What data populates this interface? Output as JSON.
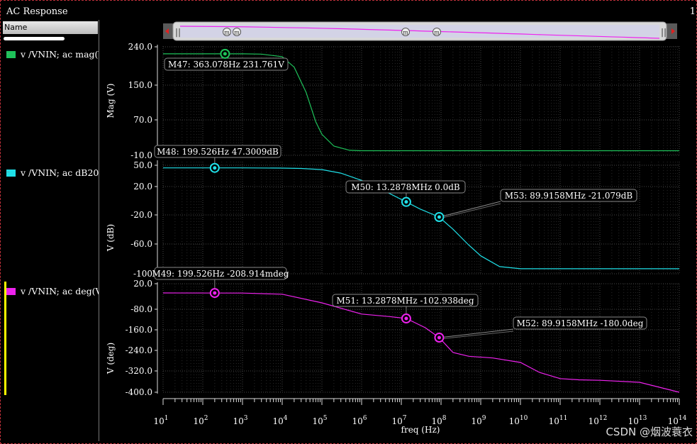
{
  "window": {
    "title": "AC Response",
    "title_right": "1"
  },
  "sidebar": {
    "header": "Name",
    "signals": [
      {
        "label": "v /VNIN; ac mag(V)",
        "color": "#1ec25a"
      },
      {
        "label": "v /VNIN; ac dB20",
        "color": "#1fe0e8"
      },
      {
        "label": "v /VNIN; ac deg(V)",
        "color": "#ee22ee"
      }
    ]
  },
  "overview_markers": [
    "m",
    "m",
    "m",
    "m"
  ],
  "watermark": "CSDN @烟波蓑衣",
  "chart_data": [
    {
      "type": "line",
      "ylabel": "Mag (V)",
      "ytick_labels": [
        "240.0",
        "150.0",
        "70.0",
        "-10.0"
      ],
      "ylim": [
        -10,
        240
      ],
      "x_log": true,
      "xlim": [
        10,
        100000000000000
      ],
      "color": "#1ec25a",
      "x": [
        10,
        1000,
        3000,
        10000,
        20000,
        40000,
        70000,
        100000,
        200000,
        500000,
        1000000,
        100000000000000
      ],
      "y": [
        231.8,
        231.8,
        231.0,
        225.0,
        200.0,
        140.0,
        70.0,
        40.0,
        12.0,
        2.0,
        1.0,
        1.0
      ],
      "markers": [
        {
          "label": "M47: 363.078Hz 231.761V",
          "x": 363.078,
          "y": 231.761
        }
      ]
    },
    {
      "type": "line",
      "ylabel": "V (dB)",
      "ytick_labels": [
        "50.0",
        "20.0",
        "-20.0",
        "-60.0",
        "-100"
      ],
      "ylim": [
        -100,
        50
      ],
      "x_log": true,
      "xlim": [
        10,
        100000000000000
      ],
      "color": "#1fe0e8",
      "x": [
        10,
        1000,
        10000,
        30000,
        100000,
        300000,
        1000000,
        3000000,
        13287800,
        30000000,
        89915800,
        200000000,
        500000000,
        1000000000,
        3000000000,
        10000000000,
        100000000000000
      ],
      "y": [
        47.3,
        47.3,
        47.0,
        46.5,
        45.0,
        40.0,
        30.0,
        18.0,
        0.0,
        -10.0,
        -21.1,
        -38.0,
        -60.0,
        -75.0,
        -90.0,
        -93.0,
        -93.0
      ],
      "markers": [
        {
          "label": "M48: 199.526Hz 47.3009dB",
          "x": 199.526,
          "y": 47.3009
        },
        {
          "label": "M50: 13.2878MHz 0.0dB",
          "x": 13287800,
          "y": 0.0
        },
        {
          "label": "M53: 89.9158MHz -21.079dB",
          "x": 89915800,
          "y": -21.079
        }
      ]
    },
    {
      "type": "line",
      "ylabel": "V (deg)",
      "ytick_labels": [
        "20.0",
        "-80.0",
        "-160.0",
        "-240.0",
        "-320.0",
        "-400.0"
      ],
      "ylim": [
        -400,
        20
      ],
      "x_log": true,
      "xlim": [
        10,
        100000000000000
      ],
      "color": "#ee22ee",
      "x": [
        10,
        1000,
        10000,
        100000,
        1000000,
        5000000,
        13287800,
        40000000,
        89915800,
        200000000,
        500000000,
        2000000000,
        10000000000,
        30000000000,
        100000000000,
        300000000000,
        1000000000000,
        10000000000000,
        100000000000000
      ],
      "y": [
        0.0,
        -0.5,
        -5.0,
        -40.0,
        -85.0,
        -95.0,
        -102.9,
        -140.0,
        -180.0,
        -240.0,
        -255.0,
        -262.0,
        -280.0,
        -320.0,
        -345.0,
        -350.0,
        -352.0,
        -360.0,
        -400.0
      ],
      "markers": [
        {
          "label": "M49: 199.526Hz -208.914mdeg",
          "x": 199.526,
          "y": -0.208914
        },
        {
          "label": "M51: 13.2878MHz -102.938deg",
          "x": 13287800,
          "y": -102.938
        },
        {
          "label": "M52: 89.9158MHz -180.0deg",
          "x": 89915800,
          "y": -180.0
        }
      ]
    }
  ],
  "xaxis": {
    "label": "freq (Hz)",
    "tick_exponents": [
      "1",
      "2",
      "3",
      "4",
      "5",
      "6",
      "7",
      "8",
      "9",
      "10",
      "11",
      "12",
      "13",
      "14"
    ],
    "tick_base": "10"
  }
}
